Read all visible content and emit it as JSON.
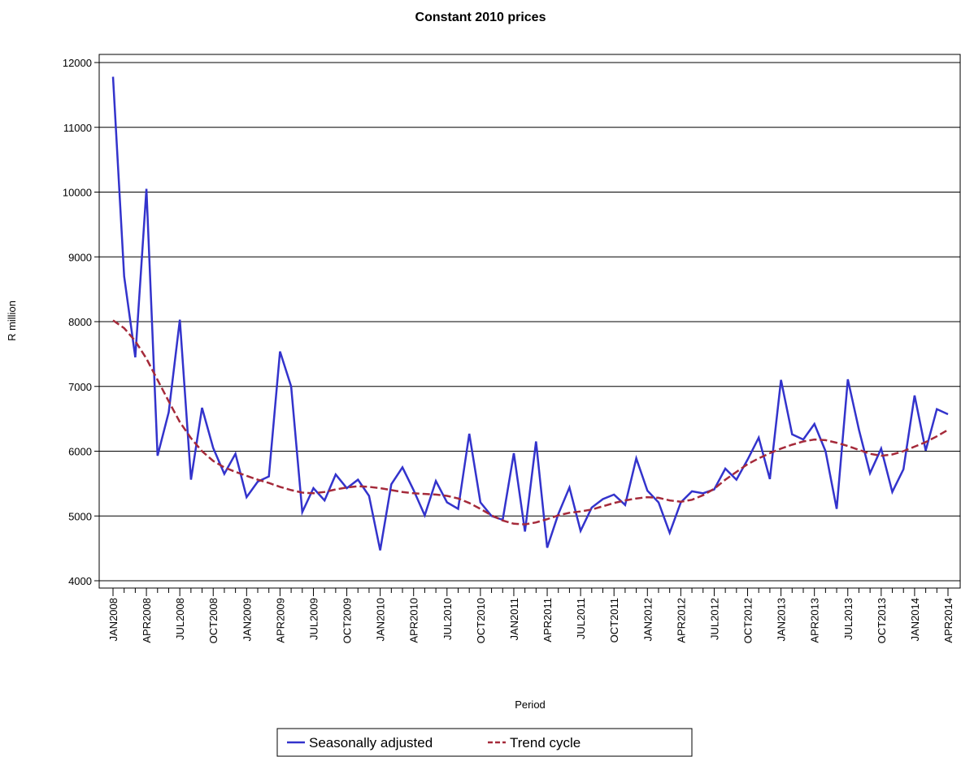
{
  "chart_data": {
    "type": "line",
    "title": "Constant 2010 prices",
    "y_label": "R million",
    "x_label": "Period",
    "categories": [
      "JAN2008",
      null,
      null,
      "APR2008",
      null,
      null,
      "JUL2008",
      null,
      null,
      "OCT2008",
      null,
      null,
      "JAN2009",
      null,
      null,
      "APR2009",
      null,
      null,
      "JUL2009",
      null,
      null,
      "OCT2009",
      null,
      null,
      "JAN2010",
      null,
      null,
      "APR2010",
      null,
      null,
      "JUL2010",
      null,
      null,
      "OCT2010",
      null,
      null,
      "JAN2011",
      null,
      null,
      "APR2011",
      null,
      null,
      "JUL2011",
      null,
      null,
      "OCT2011",
      null,
      null,
      "JAN2012",
      null,
      null,
      "APR2012",
      null,
      null,
      "JUL2012",
      null,
      null,
      "OCT2012",
      null,
      null,
      "JAN2013",
      null,
      null,
      "APR2013",
      null,
      null,
      "JUL2013",
      null,
      null,
      "OCT2013",
      null,
      null,
      "JAN2014",
      null,
      null,
      "APR2014"
    ],
    "series": [
      {
        "name": "Seasonally adjusted",
        "color": "#3333cc",
        "dash": false,
        "values": [
          11780,
          8700,
          7450,
          10050,
          5930,
          6600,
          8030,
          5560,
          6670,
          6050,
          5650,
          5960,
          5290,
          5530,
          5610,
          7540,
          7000,
          5060,
          5430,
          5240,
          5640,
          5430,
          5560,
          5310,
          4470,
          5490,
          5750,
          5400,
          5010,
          5540,
          5210,
          5110,
          6270,
          5210,
          5000,
          4940,
          5970,
          4760,
          6150,
          4510,
          5030,
          5440,
          4770,
          5130,
          5260,
          5330,
          5170,
          5890,
          5390,
          5210,
          4740,
          5210,
          5380,
          5350,
          5410,
          5730,
          5560,
          5870,
          6210,
          5570,
          7100,
          6260,
          6180,
          6420,
          6000,
          5110,
          7110,
          6330,
          5660,
          6040,
          5370,
          5720,
          6860,
          6010,
          6650,
          6570
        ]
      },
      {
        "name": "Trend cycle",
        "color": "#a52a3a",
        "dash": true,
        "values": [
          8020,
          7900,
          7700,
          7430,
          7100,
          6770,
          6450,
          6200,
          6000,
          5850,
          5750,
          5680,
          5620,
          5560,
          5510,
          5450,
          5400,
          5360,
          5350,
          5370,
          5410,
          5440,
          5460,
          5450,
          5430,
          5400,
          5370,
          5350,
          5340,
          5330,
          5310,
          5270,
          5200,
          5110,
          5010,
          4930,
          4880,
          4870,
          4900,
          4950,
          5010,
          5050,
          5070,
          5100,
          5150,
          5200,
          5240,
          5270,
          5290,
          5280,
          5240,
          5220,
          5250,
          5320,
          5420,
          5560,
          5680,
          5800,
          5890,
          5970,
          6040,
          6100,
          6150,
          6180,
          6170,
          6130,
          6080,
          6020,
          5960,
          5930,
          5950,
          6000,
          6070,
          6140,
          6230,
          6330
        ]
      }
    ],
    "ylim": [
      4000,
      12000
    ],
    "yticks": [
      4000,
      5000,
      6000,
      7000,
      8000,
      9000,
      10000,
      11000,
      12000
    ],
    "grid": true
  }
}
